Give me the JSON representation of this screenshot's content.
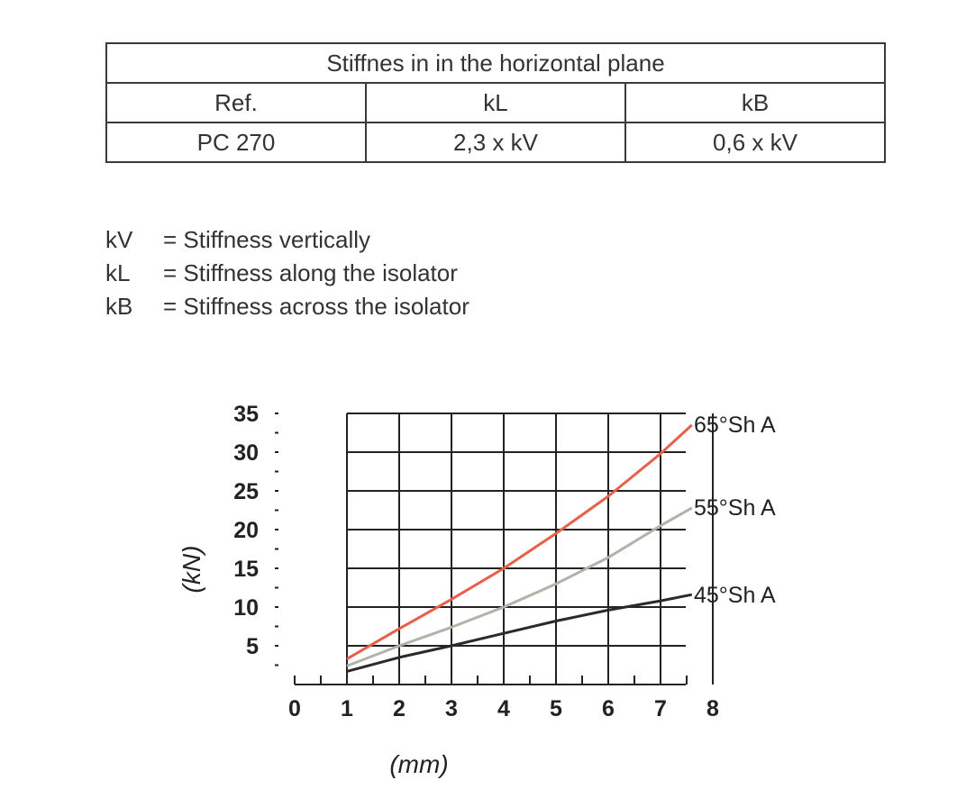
{
  "table": {
    "title": "Stiffnes in in the horizontal plane",
    "headers": [
      "Ref.",
      "kL",
      "kB"
    ],
    "rows": [
      [
        "PC 270",
        "2,3 x kV",
        "0,6 x kV"
      ]
    ]
  },
  "legend": [
    {
      "key": "kV",
      "text": "= Stiffness vertically"
    },
    {
      "key": "kL",
      "text": "= Stiffness along the isolator"
    },
    {
      "key": "kB",
      "text": "= Stiffness across the isolator"
    }
  ],
  "chart_data": {
    "type": "line",
    "xlabel": "(mm)",
    "ylabel": "(kN)",
    "xlim": [
      0,
      8
    ],
    "ylim": [
      0,
      35
    ],
    "x_ticks": [
      "0",
      "1",
      "2",
      "3",
      "4",
      "5",
      "6",
      "7",
      "8"
    ],
    "y_ticks": [
      "5",
      "10",
      "15",
      "20",
      "25",
      "30",
      "35"
    ],
    "grid": true,
    "series": [
      {
        "name": "65°Sh A",
        "color": "#e8604a",
        "x": [
          1,
          2,
          3,
          4,
          5,
          6,
          7,
          7.6
        ],
        "y": [
          3.3,
          7.2,
          11.0,
          15.0,
          19.5,
          24.3,
          29.8,
          33.5
        ]
      },
      {
        "name": "55°Sh A",
        "color": "#b4b0aa",
        "x": [
          1,
          2,
          3,
          4,
          5,
          6,
          7,
          7.6
        ],
        "y": [
          2.4,
          5.0,
          7.4,
          10.0,
          13.0,
          16.4,
          20.5,
          22.8
        ]
      },
      {
        "name": "45°Sh A",
        "color": "#2a2a2a",
        "x": [
          1,
          2,
          3,
          4,
          5,
          6,
          7,
          7.6
        ],
        "y": [
          1.7,
          3.5,
          5.0,
          6.6,
          8.2,
          9.6,
          10.8,
          11.6
        ]
      }
    ]
  }
}
